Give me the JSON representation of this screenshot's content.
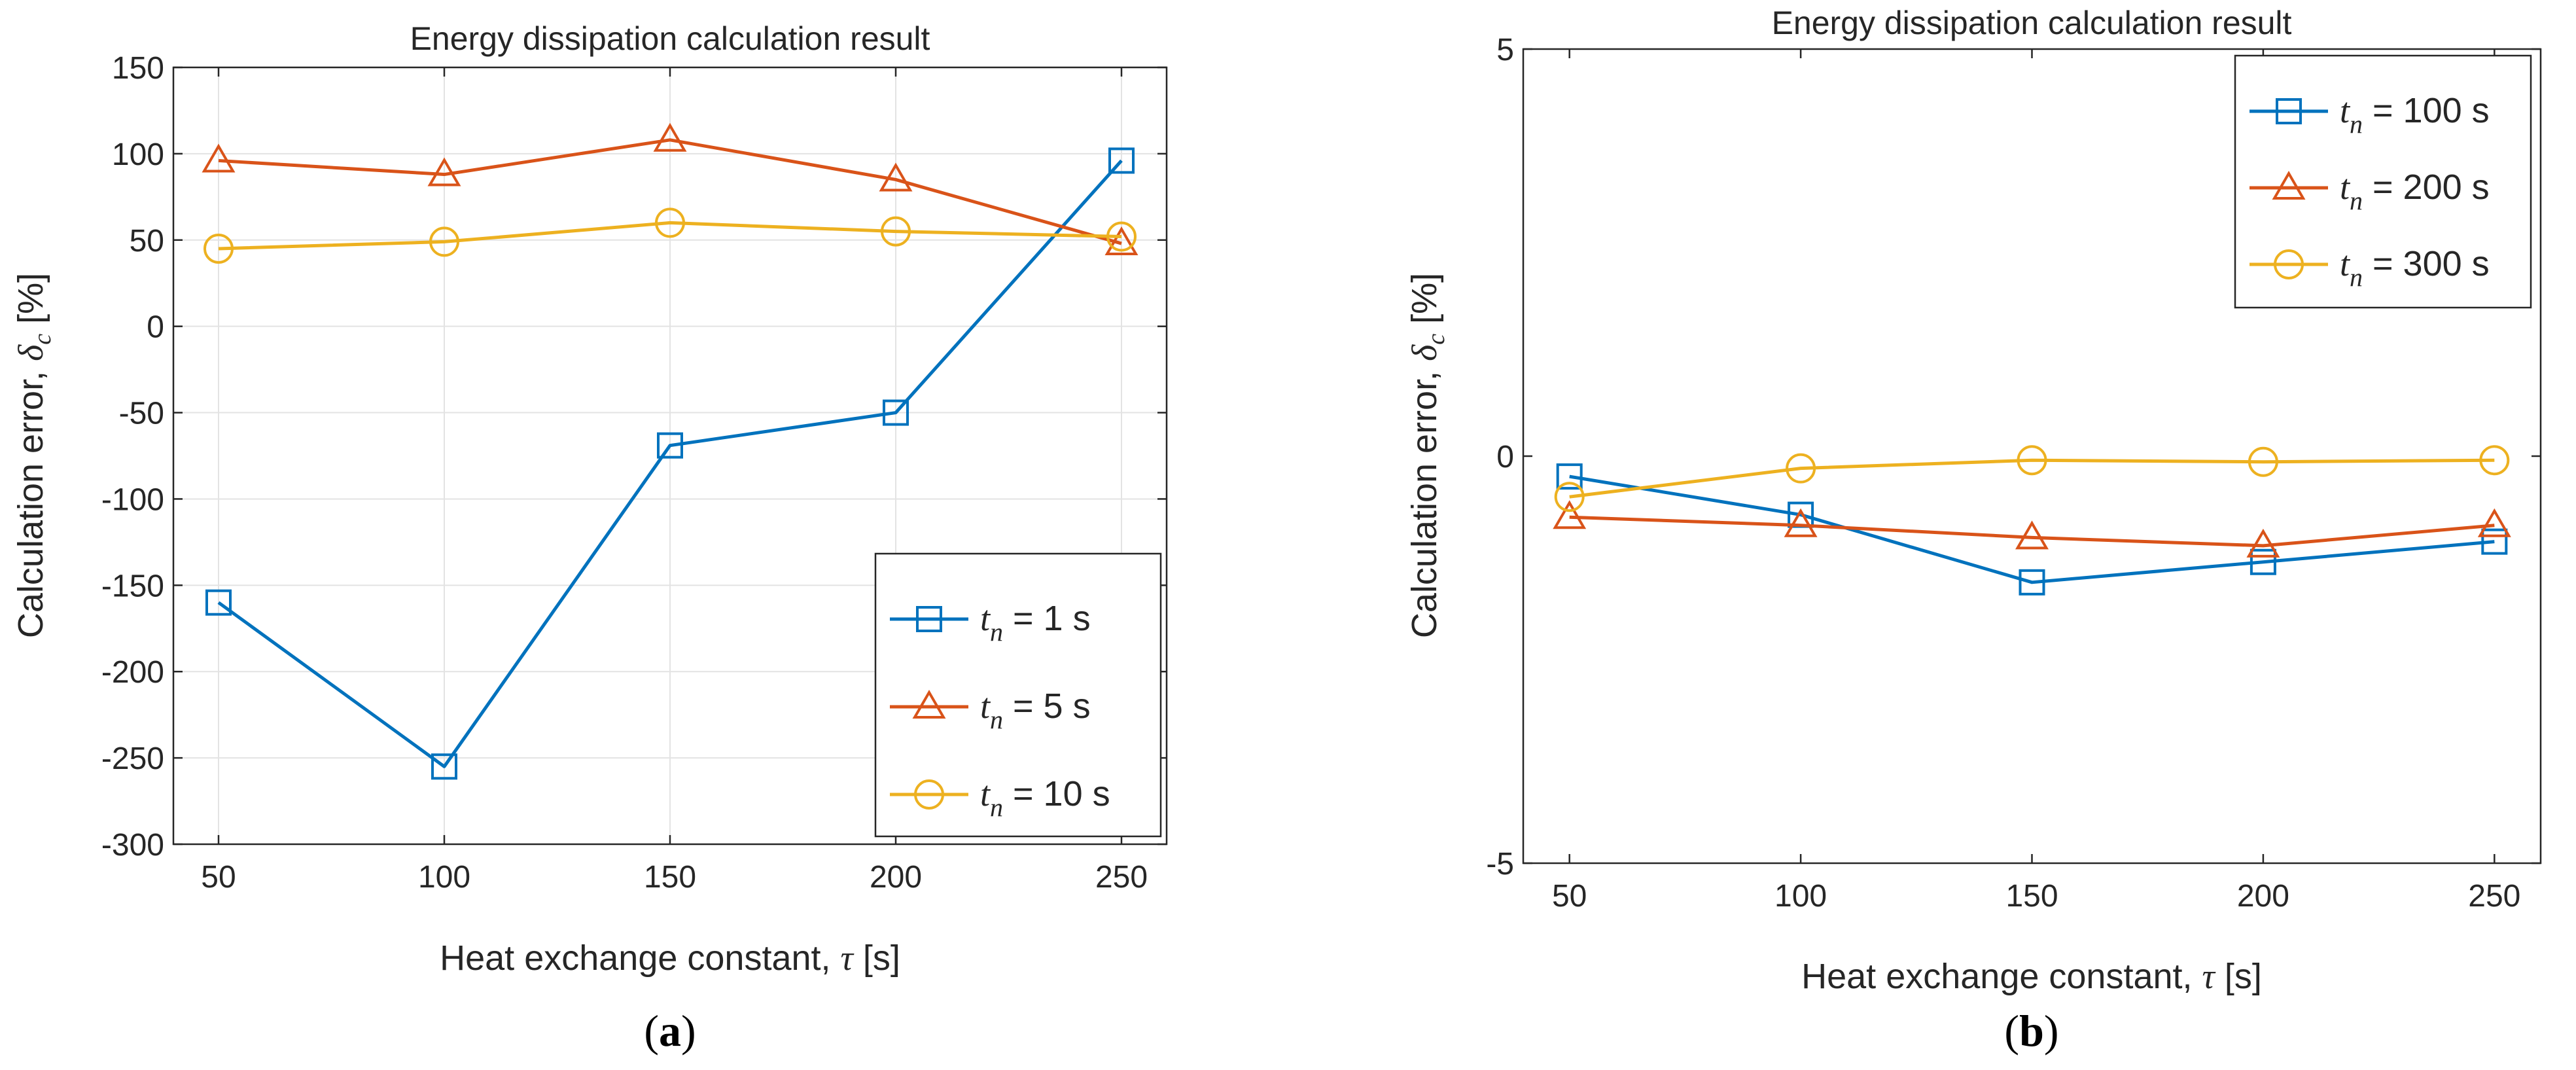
{
  "chart_data": [
    {
      "panel_label": "a",
      "type": "line",
      "title": "Energy dissipation calculation result",
      "xlabel_main": "Heat exchange constant, ",
      "xlabel_symbol": "τ",
      "xlabel_unit": " [s]",
      "ylabel_main": "Calculation error, ",
      "ylabel_symbol": "δ",
      "ylabel_sub": "c",
      "ylabel_unit": " [%]",
      "x": [
        50,
        100,
        150,
        200,
        250
      ],
      "xlim": [
        40,
        260
      ],
      "ylim": [
        -300,
        150
      ],
      "xticks": [
        50,
        100,
        150,
        200,
        250
      ],
      "yticks": [
        -300,
        -250,
        -200,
        -150,
        -100,
        -50,
        0,
        50,
        100,
        150
      ],
      "grid": true,
      "legend_position": "bottom-right",
      "series": [
        {
          "var": "t",
          "sub": "n",
          "label": " = 1 s",
          "marker": "square",
          "color": "#0072bd",
          "values": [
            -160,
            -255,
            -69,
            -50,
            96
          ]
        },
        {
          "var": "t",
          "sub": "n",
          "label": " = 5 s",
          "marker": "triangle",
          "color": "#d95319",
          "values": [
            96,
            88,
            108,
            85,
            48
          ]
        },
        {
          "var": "t",
          "sub": "n",
          "label": " = 10 s",
          "marker": "circle",
          "color": "#edb120",
          "values": [
            45,
            49,
            60,
            55,
            52
          ]
        }
      ]
    },
    {
      "panel_label": "b",
      "type": "line",
      "title": "Energy dissipation calculation result",
      "xlabel_main": "Heat exchange constant, ",
      "xlabel_symbol": "τ",
      "xlabel_unit": " [s]",
      "ylabel_main": "Calculation error, ",
      "ylabel_symbol": "δ",
      "ylabel_sub": "c",
      "ylabel_unit": " [%]",
      "x": [
        50,
        100,
        150,
        200,
        250
      ],
      "xlim": [
        40,
        260
      ],
      "ylim": [
        -5,
        5
      ],
      "xticks": [
        50,
        100,
        150,
        200,
        250
      ],
      "yticks": [
        -5,
        0,
        5
      ],
      "grid": false,
      "legend_position": "top-right",
      "series": [
        {
          "var": "t",
          "sub": "n",
          "label": " = 100 s",
          "marker": "square",
          "color": "#0072bd",
          "values": [
            -0.25,
            -0.72,
            -1.55,
            -1.3,
            -1.05
          ]
        },
        {
          "var": "t",
          "sub": "n",
          "label": " = 200 s",
          "marker": "triangle",
          "color": "#d95319",
          "values": [
            -0.75,
            -0.85,
            -1.0,
            -1.1,
            -0.85
          ]
        },
        {
          "var": "t",
          "sub": "n",
          "label": " = 300 s",
          "marker": "circle",
          "color": "#edb120",
          "values": [
            -0.5,
            -0.15,
            -0.05,
            -0.07,
            -0.05
          ]
        }
      ]
    }
  ]
}
